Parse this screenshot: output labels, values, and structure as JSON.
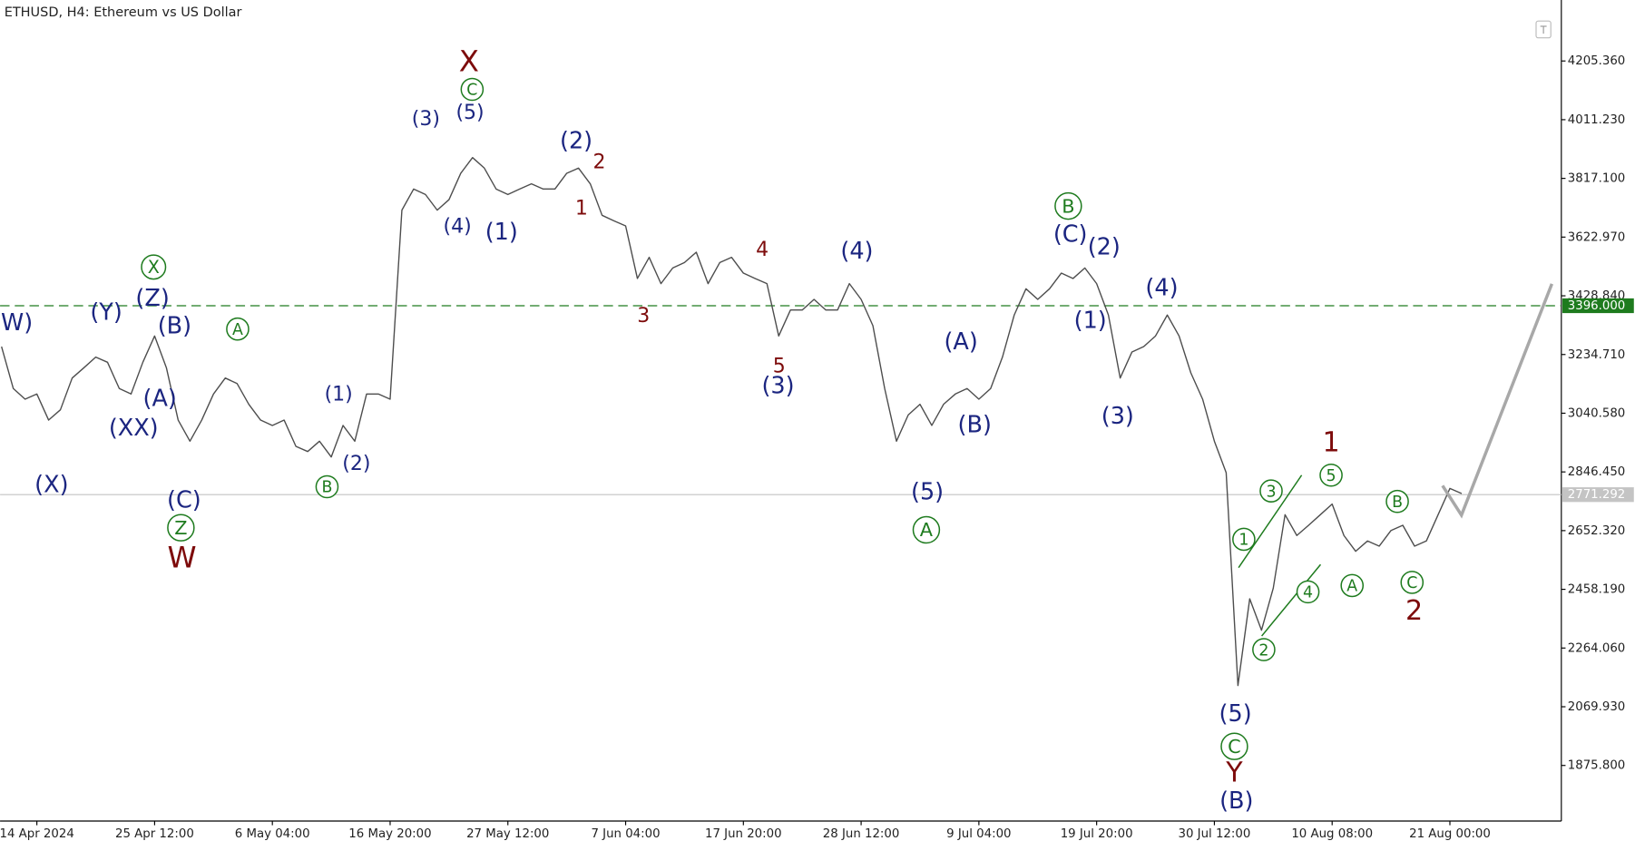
{
  "chart_data": {
    "type": "line",
    "title": "ETHUSD, H4:  Ethereum vs US Dollar",
    "color": "#4d4d4d",
    "categories": [
      null,
      null,
      null,
      "14 Apr 2024",
      null,
      null,
      null,
      null,
      null,
      null,
      null,
      null,
      null,
      "25 Apr 12:00",
      null,
      null,
      null,
      null,
      null,
      null,
      null,
      null,
      null,
      "6 May 04:00",
      null,
      null,
      null,
      null,
      null,
      null,
      null,
      null,
      null,
      "16 May 20:00",
      null,
      null,
      null,
      null,
      null,
      null,
      null,
      null,
      null,
      "27 May 12:00",
      null,
      null,
      null,
      null,
      null,
      null,
      null,
      null,
      null,
      "7 Jun 04:00",
      null,
      null,
      null,
      null,
      null,
      null,
      null,
      null,
      null,
      "17 Jun 20:00",
      null,
      null,
      null,
      null,
      null,
      null,
      null,
      null,
      null,
      "28 Jun 12:00",
      null,
      null,
      null,
      null,
      null,
      null,
      null,
      null,
      null,
      "9 Jul 04:00",
      null,
      null,
      null,
      null,
      null,
      null,
      null,
      null,
      null,
      "19 Jul 20:00",
      null,
      null,
      null,
      null,
      null,
      null,
      null,
      null,
      null,
      "30 Jul 12:00",
      null,
      null,
      null,
      null,
      null,
      null,
      null,
      null,
      null,
      "10 Aug 08:00",
      null,
      null,
      null,
      null,
      null,
      null,
      null,
      null,
      null,
      "21 Aug 00:00",
      null
    ],
    "values": [
      3261,
      3122,
      3087,
      3104,
      3018,
      3052,
      3157,
      3191,
      3226,
      3209,
      3122,
      3104,
      3209,
      3296,
      3191,
      3018,
      2948,
      3018,
      3104,
      3157,
      3139,
      3070,
      3018,
      3000,
      3018,
      2931,
      2914,
      2948,
      2896,
      3000,
      2948,
      3104,
      3104,
      3087,
      3712,
      3782,
      3764,
      3712,
      3747,
      3834,
      3886,
      3851,
      3782,
      3764,
      3782,
      3799,
      3782,
      3782,
      3834,
      3851,
      3799,
      3695,
      3677,
      3660,
      3486,
      3556,
      3469,
      3521,
      3539,
      3573,
      3469,
      3539,
      3556,
      3504,
      3486,
      3469,
      3296,
      3382,
      3382,
      3417,
      3382,
      3382,
      3469,
      3417,
      3330,
      3122,
      2948,
      3035,
      3070,
      3000,
      3070,
      3104,
      3122,
      3087,
      3122,
      3226,
      3365,
      3452,
      3417,
      3452,
      3504,
      3486,
      3521,
      3469,
      3365,
      3157,
      3243,
      3261,
      3296,
      3365,
      3296,
      3174,
      3087,
      2948,
      2844,
      2140,
      2427,
      2323,
      2462,
      2705,
      2636,
      2670,
      2705,
      2740,
      2636,
      2584,
      2618,
      2601,
      2653,
      2670,
      2601,
      2618,
      2705,
      2792,
      2775
    ],
    "ylim": [
      1692,
      4407
    ],
    "yticks": [
      {
        "value": 4205.36,
        "label": "4205.360"
      },
      {
        "value": 4011.23,
        "label": "4011.230"
      },
      {
        "value": 3817.1,
        "label": "3817.100"
      },
      {
        "value": 3622.97,
        "label": "3622.970"
      },
      {
        "value": 3428.84,
        "label": "3428.840"
      },
      {
        "value": 3234.71,
        "label": "3234.710"
      },
      {
        "value": 3040.58,
        "label": "3040.580"
      },
      {
        "value": 2846.45,
        "label": "2846.450"
      },
      {
        "value": 2652.32,
        "label": "2652.320"
      },
      {
        "value": 2458.19,
        "label": "2458.190"
      },
      {
        "value": 2264.06,
        "label": "2264.060"
      },
      {
        "value": 2069.93,
        "label": "2069.930"
      },
      {
        "value": 1875.8,
        "label": "1875.800"
      }
    ],
    "hlines": [
      {
        "value": 3396,
        "label": "3396.000",
        "color": "#1e7b1e",
        "dashed": true
      },
      {
        "value": 2771.292,
        "label": "2771.292",
        "color": "#c4c4c4",
        "dashed": false
      }
    ],
    "annotations": [
      {
        "text": "W)",
        "color": "#1b2580",
        "circled": false
      },
      {
        "text": "(Y)",
        "color": "#1b2580",
        "circled": false
      },
      {
        "text": "(Z)",
        "color": "#1b2580",
        "circled": false
      },
      {
        "text": "X",
        "color": "#1e7b1e",
        "circled": true
      },
      {
        "text": "(B)",
        "color": "#1b2580",
        "circled": false
      },
      {
        "text": "A",
        "color": "#1e7b1e",
        "circled": true
      },
      {
        "text": "(A)",
        "color": "#1b2580",
        "circled": false
      },
      {
        "text": "(XX)",
        "color": "#1b2580",
        "circled": false
      },
      {
        "text": "(X)",
        "color": "#1b2580",
        "circled": false
      },
      {
        "text": "(C)",
        "color": "#1b2580",
        "circled": false
      },
      {
        "text": "Z",
        "color": "#1e7b1e",
        "circled": true
      },
      {
        "text": "W",
        "color": "#7d0b0b",
        "circled": false
      },
      {
        "text": "(1)",
        "color": "#1b2580",
        "circled": false
      },
      {
        "text": "(2)",
        "color": "#1b2580",
        "circled": false
      },
      {
        "text": "B",
        "color": "#1e7b1e",
        "circled": true
      },
      {
        "text": "X",
        "color": "#7d0b0b",
        "circled": false
      },
      {
        "text": "C",
        "color": "#1e7b1e",
        "circled": true
      },
      {
        "text": "(5)",
        "color": "#1b2580",
        "circled": false
      },
      {
        "text": "(3)",
        "color": "#1b2580",
        "circled": false
      },
      {
        "text": "(4)",
        "color": "#1b2580",
        "circled": false
      },
      {
        "text": "(1)",
        "color": "#1b2580",
        "circled": false
      },
      {
        "text": "(2)",
        "color": "#1b2580",
        "circled": false
      },
      {
        "text": "2",
        "color": "#7d0b0b",
        "circled": false
      },
      {
        "text": "1",
        "color": "#7d0b0b",
        "circled": false
      },
      {
        "text": "3",
        "color": "#7d0b0b",
        "circled": false
      },
      {
        "text": "4",
        "color": "#7d0b0b",
        "circled": false
      },
      {
        "text": "5",
        "color": "#7d0b0b",
        "circled": false
      },
      {
        "text": "(3)",
        "color": "#1b2580",
        "circled": false
      },
      {
        "text": "(4)",
        "color": "#1b2580",
        "circled": false
      },
      {
        "text": "(A)",
        "color": "#1b2580",
        "circled": false
      },
      {
        "text": "(B)",
        "color": "#1b2580",
        "circled": false
      },
      {
        "text": "(5)",
        "color": "#1b2580",
        "circled": false
      },
      {
        "text": "A",
        "color": "#1e7b1e",
        "circled": true
      },
      {
        "text": "B",
        "color": "#1e7b1e",
        "circled": true
      },
      {
        "text": "(C)",
        "color": "#1b2580",
        "circled": false
      },
      {
        "text": "(2)",
        "color": "#1b2580",
        "circled": false
      },
      {
        "text": "(1)",
        "color": "#1b2580",
        "circled": false
      },
      {
        "text": "(3)",
        "color": "#1b2580",
        "circled": false
      },
      {
        "text": "(4)",
        "color": "#1b2580",
        "circled": false
      },
      {
        "text": "1",
        "color": "#7d0b0b",
        "circled": false
      },
      {
        "text": "5",
        "color": "#1e7b1e",
        "circled": true
      },
      {
        "text": "3",
        "color": "#1e7b1e",
        "circled": true
      },
      {
        "text": "1",
        "color": "#1e7b1e",
        "circled": true
      },
      {
        "text": "4",
        "color": "#1e7b1e",
        "circled": true
      },
      {
        "text": "2",
        "color": "#1e7b1e",
        "circled": true
      },
      {
        "text": "A",
        "color": "#1e7b1e",
        "circled": true
      },
      {
        "text": "B",
        "color": "#1e7b1e",
        "circled": true
      },
      {
        "text": "C",
        "color": "#1e7b1e",
        "circled": true
      },
      {
        "text": "2",
        "color": "#7d0b0b",
        "circled": false
      },
      {
        "text": "(5)",
        "color": "#1b2580",
        "circled": false
      },
      {
        "text": "C",
        "color": "#1e7b1e",
        "circled": true
      },
      {
        "text": "Y",
        "color": "#7d0b0b",
        "circled": false
      },
      {
        "text": "(B)",
        "color": "#1b2580",
        "circled": false
      }
    ]
  }
}
